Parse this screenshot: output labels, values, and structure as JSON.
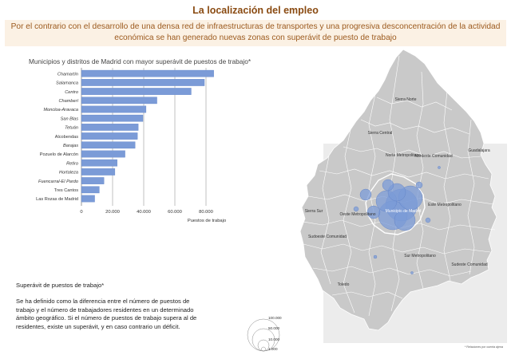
{
  "header": {
    "title": "La localización del empleo",
    "banner": "Por el contrario con el desarrollo de una densa red de infraestructuras de transportes y una progresiva desconcentración de la actividad económica se han generado nuevas zonas con superávit de puesto de trabajo"
  },
  "chart_data": {
    "type": "bar",
    "orientation": "horizontal",
    "title": "Municipios y distritos de Madrid con mayor superávit de puestos de trabajo*",
    "xlabel": "Puestos de trabajo",
    "ylabel": "",
    "xlim": [
      0,
      80000
    ],
    "xticks": [
      0,
      20000,
      40000,
      60000,
      80000
    ],
    "xtick_labels": [
      "0",
      "20.000",
      "40.000",
      "60.000",
      "80.000"
    ],
    "grid": true,
    "bar_color": "#7b9bd7",
    "categories": [
      "Chamartín",
      "Salamanca",
      "Centro",
      "Chamberí",
      "Moncloa-Aravaca",
      "San Blas",
      "Tetuán",
      "Alcobendas",
      "Barajas",
      "Pozuelo de Alarcón",
      "Retiro",
      "Hortaleza",
      "Fuencarral-El Pardo",
      "Tres Cantos",
      "Las Rozas de Madrid"
    ],
    "italic_categories": [
      "Chamartín",
      "Salamanca",
      "Centro",
      "Chamberí",
      "Moncloa-Aravaca",
      "San Blas",
      "Tetuán",
      "Barajas",
      "Retiro",
      "Hortaleza",
      "Fuencarral-El Pardo"
    ],
    "values": [
      85000,
      79000,
      70500,
      48500,
      41500,
      39500,
      36500,
      36000,
      34500,
      28000,
      23000,
      21500,
      14500,
      11500,
      8500
    ]
  },
  "note": {
    "heading": "Superávit de puestos de trabajo*",
    "body": "Se ha definido como la diferencia entre el número de puestos de trabajo y el número de trabajadores residentes  en un determinado ámbito geográfico. Si el número de puestos de trabajo supera al de residentes, existe un superávit, y en caso contrario un déficit."
  },
  "map": {
    "labels": {
      "sierra_norte": "Sierra Norte",
      "sierra_central": "Sierra Central",
      "norte_metropolitano": "Norte Metropolitano",
      "nordeste_comunidad": "Nordeste Comunidad",
      "guadalajara": "Guadalajara",
      "sierra_sur": "Sierra Sur",
      "oeste_metropolitano": "Oeste Metropolitano",
      "municipio_madrid": "Municipio de Madrid",
      "este_metropolitano": "Este Metropolitano",
      "sudoeste_comunidad": "Sudoeste Comunidad",
      "sur_metropolitano": "Sur Metropolitano",
      "sudeste_comunidad": "Sudeste Comunidad",
      "toledo": "Toledo"
    },
    "legend_values": [
      "100.000",
      "50.000",
      "10.000",
      "1.000"
    ],
    "credit": "* Relaciones por cuenta ajena",
    "colors": {
      "land": "#c9c9c9",
      "borders": "#ffffff",
      "bubbles": "#7b9bd7",
      "surround": "#e6e6e6"
    }
  }
}
